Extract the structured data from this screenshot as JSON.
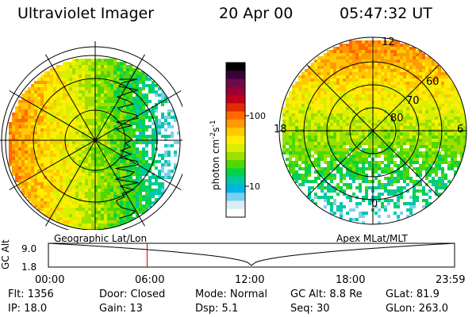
{
  "header": {
    "title": "Ultraviolet Imager",
    "date": "20 Apr 00",
    "time": "05:47:32 UT"
  },
  "colorbar": {
    "label": "photon cm",
    "label_exp1": "-2",
    "label_mid": "s",
    "label_exp2": "-1",
    "ticks": [
      "100",
      "10"
    ],
    "colors": [
      "#000000",
      "#3a003a",
      "#6b0a4a",
      "#9b0030",
      "#c0001a",
      "#e22b00",
      "#ff6a00",
      "#ff9a00",
      "#ffc800",
      "#ffee00",
      "#d8f000",
      "#9be000",
      "#4ed800",
      "#00d24a",
      "#00c8a8",
      "#00b4e6",
      "#7ad0ee",
      "#d8eef4",
      "#ffffff"
    ]
  },
  "left_panel": {
    "caption": "Geographic Lat/Lon"
  },
  "right_panel": {
    "caption": "Apex MLat/MLT",
    "grid_labels": {
      "mlt_top": "12",
      "mlt_left": "18",
      "mlt_right": "6",
      "mlt_bottom": "0",
      "lat_60": "60",
      "lat_70": "70",
      "lat_80": "80"
    }
  },
  "timeline": {
    "axis_label": "GC Alt",
    "y_ticks": [
      "9.0",
      "1.8"
    ],
    "x_ticks": [
      "00:00",
      "06:00",
      "12:00",
      "18:00",
      "23:59"
    ],
    "current_time_fraction": 0.243
  },
  "status": {
    "flt": "Flt: 1356",
    "ip": "IP: 18.0",
    "door": "Door: Closed",
    "gain": "Gain: 13",
    "mode": "Mode: Normal",
    "dsp": "Dsp:    5.1",
    "gc_alt": "GC Alt: 8.8 Re",
    "seq": "Seq: 30",
    "glat": "GLat:  81.9",
    "glon": "GLon: 263.0"
  }
}
